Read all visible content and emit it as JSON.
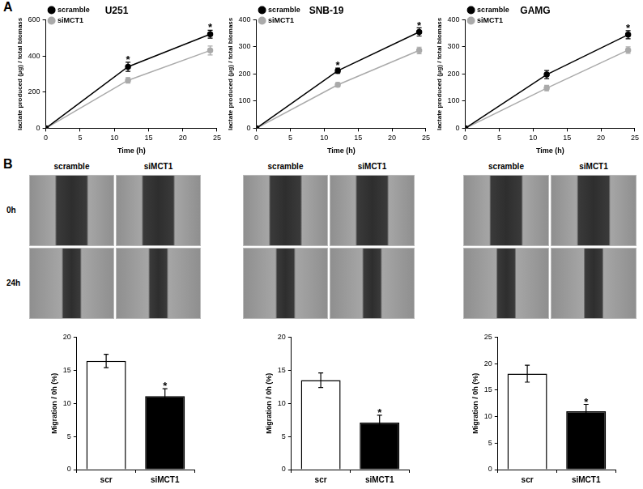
{
  "panel_labels": [
    "A",
    "B"
  ],
  "chart_data": [
    {
      "type": "line",
      "title": "U251",
      "x_label": "Time (h)",
      "y_label": "lactate produced (µg) / total biomass",
      "x": [
        0,
        12,
        24
      ],
      "xlim": [
        0,
        25
      ],
      "xticks": [
        0,
        5,
        10,
        15,
        20,
        25
      ],
      "ylim": [
        0,
        600
      ],
      "yticks": [
        0,
        200,
        400,
        600
      ],
      "grid": false,
      "legend": "upper left",
      "series": [
        {
          "name": "scramble",
          "color": "#000000",
          "marker": "circle",
          "values": [
            0,
            340,
            520
          ],
          "errors": [
            0,
            25,
            22
          ]
        },
        {
          "name": "siMCT1",
          "color": "#aaaaaa",
          "marker": "circle",
          "values": [
            0,
            265,
            430
          ],
          "errors": [
            0,
            15,
            25
          ]
        }
      ],
      "annotations": [
        {
          "x": 12,
          "text": "*"
        },
        {
          "x": 24,
          "text": "*"
        }
      ]
    },
    {
      "type": "line",
      "title": "SNB-19",
      "x_label": "Time (h)",
      "y_label": "lactate produced (µg) / total biomass",
      "x": [
        0,
        12,
        24
      ],
      "xlim": [
        0,
        25
      ],
      "xticks": [
        0,
        5,
        10,
        15,
        20,
        25
      ],
      "ylim": [
        0,
        400
      ],
      "yticks": [
        0,
        100,
        200,
        300,
        400
      ],
      "grid": false,
      "legend": "upper left",
      "series": [
        {
          "name": "scramble",
          "color": "#000000",
          "marker": "circle",
          "values": [
            0,
            212,
            355
          ],
          "errors": [
            0,
            10,
            15
          ]
        },
        {
          "name": "siMCT1",
          "color": "#aaaaaa",
          "marker": "circle",
          "values": [
            0,
            160,
            287
          ],
          "errors": [
            0,
            8,
            12
          ]
        }
      ],
      "annotations": [
        {
          "x": 12,
          "text": "*"
        },
        {
          "x": 24,
          "text": "*"
        }
      ]
    },
    {
      "type": "line",
      "title": "GAMG",
      "x_label": "Time (h)",
      "y_label": "lactate produced (µg) / total biomass",
      "x": [
        0,
        12,
        24
      ],
      "xlim": [
        0,
        25
      ],
      "xticks": [
        0,
        5,
        10,
        15,
        20,
        25
      ],
      "ylim": [
        0,
        400
      ],
      "yticks": [
        0,
        100,
        200,
        300,
        400
      ],
      "grid": false,
      "legend": "upper left",
      "series": [
        {
          "name": "scramble",
          "color": "#000000",
          "marker": "circle",
          "values": [
            0,
            198,
            345
          ],
          "errors": [
            0,
            15,
            15
          ]
        },
        {
          "name": "siMCT1",
          "color": "#aaaaaa",
          "marker": "circle",
          "values": [
            0,
            148,
            288
          ],
          "errors": [
            0,
            10,
            12
          ]
        }
      ],
      "annotations": [
        {
          "x": 24,
          "text": "*"
        }
      ]
    },
    {
      "type": "bar",
      "y_label": "Migration / 0h (%)",
      "categories": [
        "scr",
        "siMCT1"
      ],
      "values": [
        16.4,
        11.1
      ],
      "errors": [
        1.0,
        1.1
      ],
      "colors": [
        "#ffffff",
        "#000000"
      ],
      "ylim": [
        0,
        20
      ],
      "yticks": [
        0,
        5,
        10,
        15,
        20
      ],
      "grid": false,
      "annotations": [
        {
          "category": "siMCT1",
          "text": "*"
        }
      ]
    },
    {
      "type": "bar",
      "y_label": "Migration / 0h (%)",
      "categories": [
        "scr",
        "siMCT1"
      ],
      "values": [
        13.5,
        7.1
      ],
      "errors": [
        1.1,
        1.1
      ],
      "colors": [
        "#ffffff",
        "#000000"
      ],
      "ylim": [
        0,
        20
      ],
      "yticks": [
        0,
        5,
        10,
        15,
        20
      ],
      "grid": false,
      "annotations": [
        {
          "category": "siMCT1",
          "text": "*"
        }
      ]
    },
    {
      "type": "bar",
      "y_label": "Migration / 0h (%)",
      "categories": [
        "scr",
        "siMCT1"
      ],
      "values": [
        18.1,
        11.0
      ],
      "errors": [
        1.6,
        1.3
      ],
      "colors": [
        "#ffffff",
        "#000000"
      ],
      "ylim": [
        0,
        25
      ],
      "yticks": [
        0,
        5,
        10,
        15,
        20,
        25
      ],
      "grid": false,
      "annotations": [
        {
          "category": "siMCT1",
          "text": "*"
        }
      ]
    }
  ],
  "micrographs": [
    {
      "columns": [
        "scramble",
        "siMCT1"
      ],
      "rows": [
        "0h",
        "24h"
      ]
    },
    {
      "columns": [
        "scramble",
        "siMCT1"
      ]
    },
    {
      "columns": [
        "scramble",
        "siMCT1"
      ]
    }
  ]
}
